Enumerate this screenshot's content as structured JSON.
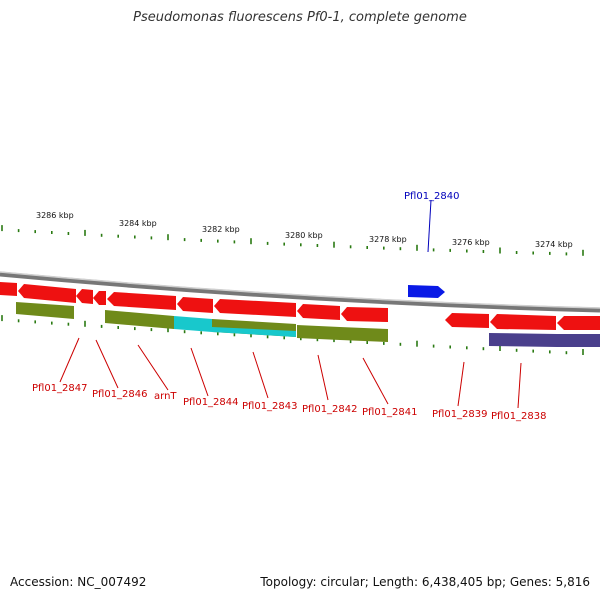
{
  "title": "Pseudomonas fluorescens Pf0-1, complete genome",
  "footer": {
    "accession": "Accession: NC_007492",
    "summary": "Topology: circular; Length: 6,438,405 bp; Genes: 5,816"
  },
  "colors": {
    "backbone": "#8a8a8a",
    "tick": "#2a7a12",
    "gene_red": "#ee1111",
    "gene_olive": "#6f8a1a",
    "gene_cyan": "#18c8cc",
    "gene_purple": "#4a3f8c",
    "gene_blue": "#0a1ae6",
    "label_red": "#cc0000",
    "label_blue": "#0000bb"
  },
  "scale_labels": [
    "3286 kbp",
    "3284 kbp",
    "3282 kbp",
    "3280 kbp",
    "3278 kbp",
    "3276 kbp",
    "3274 kbp"
  ],
  "gene_labels": [
    {
      "text": "Pfl01_2840",
      "color": "blue"
    },
    {
      "text": "Pfl01_2847",
      "color": "red"
    },
    {
      "text": "Pfl01_2846",
      "color": "red"
    },
    {
      "text": "arnT",
      "color": "red"
    },
    {
      "text": "Pfl01_2844",
      "color": "red"
    },
    {
      "text": "Pfl01_2843",
      "color": "red"
    },
    {
      "text": "Pfl01_2842",
      "color": "red"
    },
    {
      "text": "Pfl01_2841",
      "color": "red"
    },
    {
      "text": "Pfl01_2839",
      "color": "red"
    },
    {
      "text": "Pfl01_2838",
      "color": "red"
    }
  ]
}
